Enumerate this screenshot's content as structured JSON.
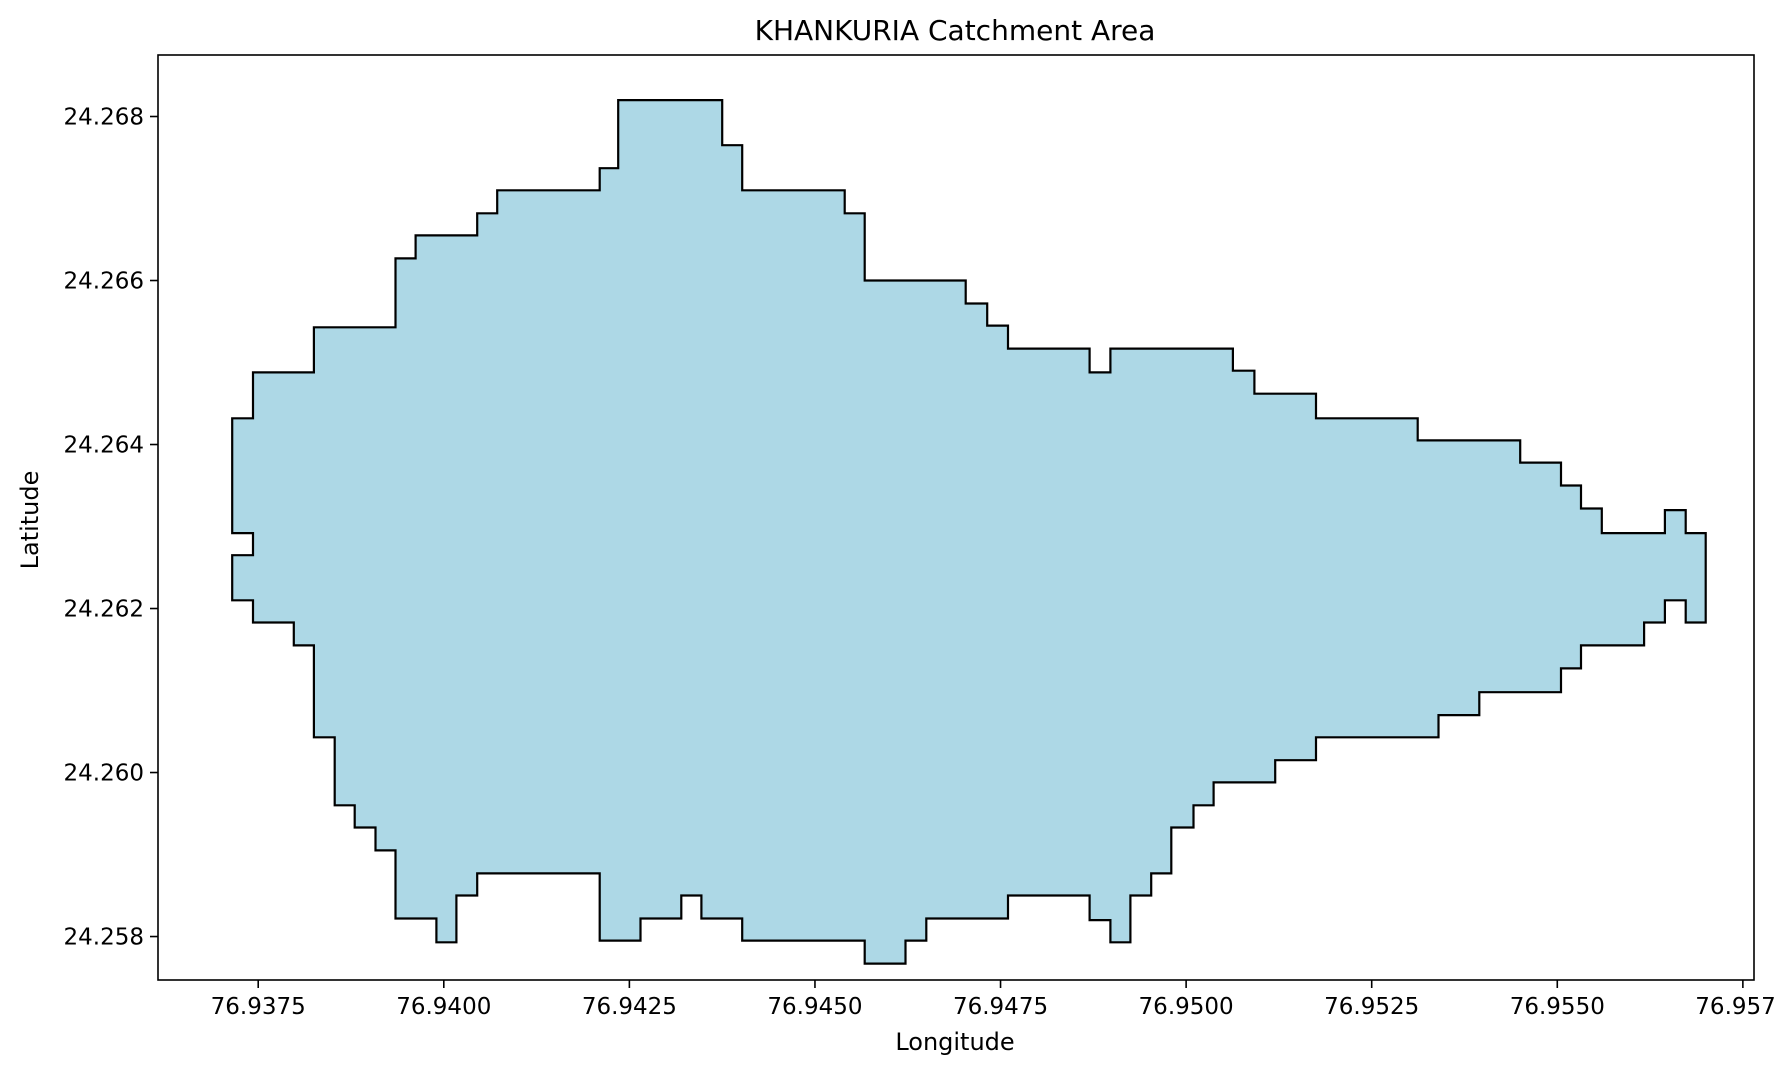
{
  "chart_data": {
    "type": "area",
    "title": "KHANKURIA Catchment Area",
    "xlabel": "Longitude",
    "ylabel": "Latitude",
    "xlim": [
      76.93615,
      76.95765
    ],
    "ylim": [
      24.25747,
      24.26875
    ],
    "xticks": [
      "76.9375",
      "76.9400",
      "76.9425",
      "76.9450",
      "76.9475",
      "76.9500",
      "76.9525",
      "76.9550",
      "76.9575"
    ],
    "yticks": [
      "24.258",
      "24.260",
      "24.262",
      "24.264",
      "24.266",
      "24.268"
    ],
    "grid": false,
    "series": [
      {
        "fill_color": "#add8e6",
        "edge_color": "#000000",
        "polygon": [
          [
            76.94235,
            24.2682
          ],
          [
            76.94375,
            24.2682
          ],
          [
            76.94375,
            24.26765
          ],
          [
            76.94402,
            24.26765
          ],
          [
            76.94402,
            24.2671
          ],
          [
            76.9454,
            24.2671
          ],
          [
            76.9454,
            24.26682
          ],
          [
            76.94567,
            24.26682
          ],
          [
            76.94567,
            24.266
          ],
          [
            76.94703,
            24.266
          ],
          [
            76.94703,
            24.26572
          ],
          [
            76.94732,
            24.26572
          ],
          [
            76.94732,
            24.26545
          ],
          [
            76.9476,
            24.26545
          ],
          [
            76.9476,
            24.26517
          ],
          [
            76.9487,
            24.26517
          ],
          [
            76.9487,
            24.26488
          ],
          [
            76.94898,
            24.26488
          ],
          [
            76.94898,
            24.26517
          ],
          [
            76.95063,
            24.26517
          ],
          [
            76.95063,
            24.2649
          ],
          [
            76.95092,
            24.2649
          ],
          [
            76.95092,
            24.26462
          ],
          [
            76.95175,
            24.26462
          ],
          [
            76.95175,
            24.26432
          ],
          [
            76.95312,
            24.26432
          ],
          [
            76.95312,
            24.26405
          ],
          [
            76.9545,
            24.26405
          ],
          [
            76.9545,
            24.26378
          ],
          [
            76.95505,
            24.26378
          ],
          [
            76.95505,
            24.2635
          ],
          [
            76.95532,
            24.2635
          ],
          [
            76.95532,
            24.26322
          ],
          [
            76.9556,
            24.26322
          ],
          [
            76.9556,
            24.26292
          ],
          [
            76.95645,
            24.26292
          ],
          [
            76.95645,
            24.2632
          ],
          [
            76.95673,
            24.2632
          ],
          [
            76.95673,
            24.26292
          ],
          [
            76.957,
            24.26292
          ],
          [
            76.957,
            24.26183
          ],
          [
            76.95673,
            24.26183
          ],
          [
            76.95673,
            24.2621
          ],
          [
            76.95645,
            24.2621
          ],
          [
            76.95645,
            24.26183
          ],
          [
            76.95617,
            24.26183
          ],
          [
            76.95617,
            24.26155
          ],
          [
            76.95532,
            24.26155
          ],
          [
            76.95532,
            24.26127
          ],
          [
            76.95505,
            24.26127
          ],
          [
            76.95505,
            24.26098
          ],
          [
            76.95395,
            24.26098
          ],
          [
            76.95395,
            24.2607
          ],
          [
            76.9534,
            24.2607
          ],
          [
            76.9534,
            24.26043
          ],
          [
            76.95175,
            24.26043
          ],
          [
            76.95175,
            24.26015
          ],
          [
            76.9512,
            24.26015
          ],
          [
            76.9512,
            24.25988
          ],
          [
            76.95037,
            24.25988
          ],
          [
            76.95037,
            24.2596
          ],
          [
            76.9501,
            24.2596
          ],
          [
            76.9501,
            24.25933
          ],
          [
            76.9498,
            24.25933
          ],
          [
            76.9498,
            24.25877
          ],
          [
            76.94953,
            24.25877
          ],
          [
            76.94953,
            24.2585
          ],
          [
            76.94925,
            24.2585
          ],
          [
            76.94925,
            24.25793
          ],
          [
            76.94898,
            24.25793
          ],
          [
            76.94898,
            24.2582
          ],
          [
            76.9487,
            24.2582
          ],
          [
            76.9487,
            24.2585
          ],
          [
            76.9476,
            24.2585
          ],
          [
            76.9476,
            24.25822
          ],
          [
            76.9465,
            24.25822
          ],
          [
            76.9465,
            24.25795
          ],
          [
            76.94622,
            24.25795
          ],
          [
            76.94622,
            24.25767
          ],
          [
            76.94567,
            24.25767
          ],
          [
            76.94567,
            24.25795
          ],
          [
            76.94402,
            24.25795
          ],
          [
            76.94402,
            24.25822
          ],
          [
            76.94347,
            24.25822
          ],
          [
            76.94347,
            24.2585
          ],
          [
            76.9432,
            24.2585
          ],
          [
            76.9432,
            24.25822
          ],
          [
            76.94265,
            24.25822
          ],
          [
            76.94265,
            24.25795
          ],
          [
            76.9421,
            24.25795
          ],
          [
            76.9421,
            24.25877
          ],
          [
            76.94045,
            24.25877
          ],
          [
            76.94045,
            24.2585
          ],
          [
            76.94017,
            24.2585
          ],
          [
            76.94017,
            24.25793
          ],
          [
            76.9399,
            24.25793
          ],
          [
            76.9399,
            24.25822
          ],
          [
            76.93935,
            24.25822
          ],
          [
            76.93935,
            24.25905
          ],
          [
            76.93908,
            24.25905
          ],
          [
            76.93908,
            24.25933
          ],
          [
            76.9388,
            24.25933
          ],
          [
            76.9388,
            24.2596
          ],
          [
            76.93853,
            24.2596
          ],
          [
            76.93853,
            24.26043
          ],
          [
            76.93825,
            24.26043
          ],
          [
            76.93825,
            24.26155
          ],
          [
            76.93798,
            24.26155
          ],
          [
            76.93798,
            24.26183
          ],
          [
            76.93743,
            24.26183
          ],
          [
            76.93743,
            24.2621
          ],
          [
            76.93715,
            24.2621
          ],
          [
            76.93715,
            24.26265
          ],
          [
            76.93743,
            24.26265
          ],
          [
            76.93743,
            24.26292
          ],
          [
            76.93715,
            24.26292
          ],
          [
            76.93715,
            24.26432
          ],
          [
            76.93743,
            24.26432
          ],
          [
            76.93743,
            24.26488
          ],
          [
            76.93825,
            24.26488
          ],
          [
            76.93825,
            24.26543
          ],
          [
            76.93935,
            24.26543
          ],
          [
            76.93935,
            24.26627
          ],
          [
            76.93962,
            24.26627
          ],
          [
            76.93962,
            24.26655
          ],
          [
            76.94045,
            24.26655
          ],
          [
            76.94045,
            24.26682
          ],
          [
            76.94072,
            24.26682
          ],
          [
            76.94072,
            24.2671
          ],
          [
            76.9421,
            24.2671
          ],
          [
            76.9421,
            24.26737
          ],
          [
            76.94235,
            24.26737
          ],
          [
            76.94235,
            24.2682
          ]
        ]
      }
    ]
  }
}
